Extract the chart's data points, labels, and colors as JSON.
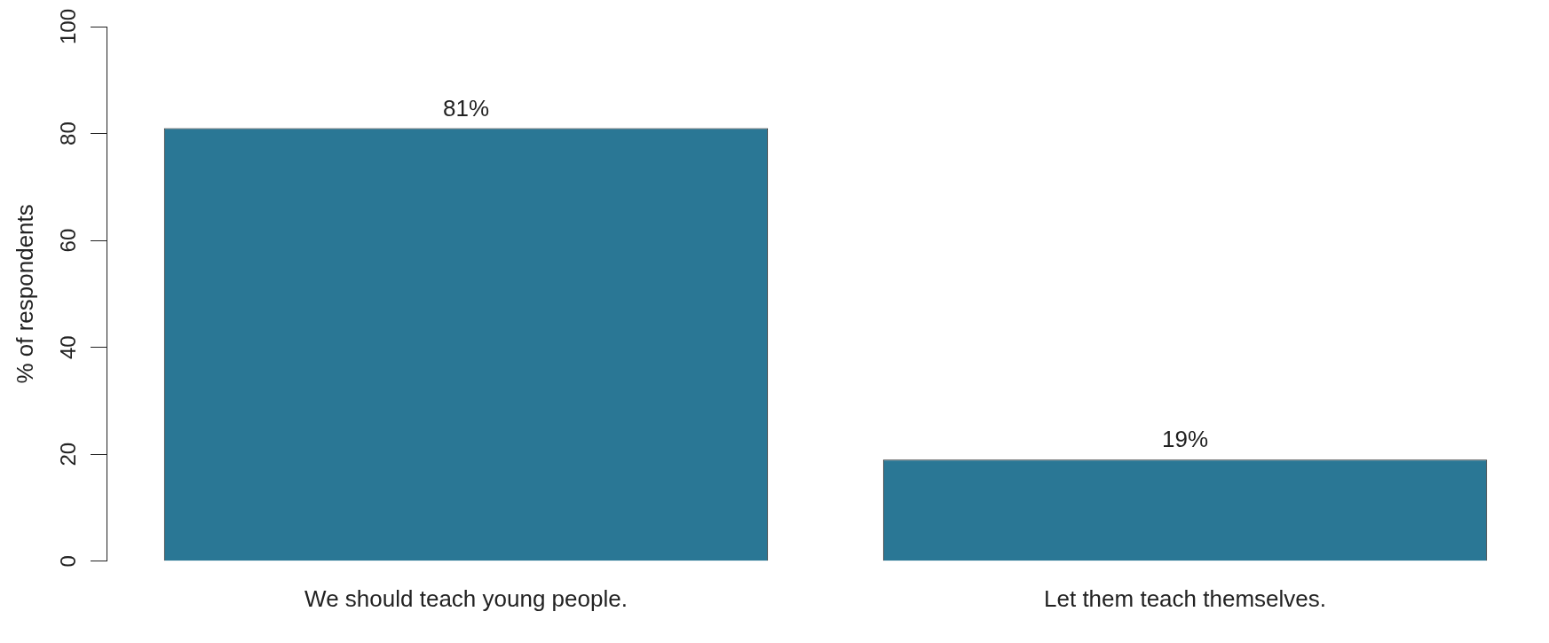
{
  "chart_data": {
    "type": "bar",
    "ylabel": "% of respondents",
    "categories": [
      "We should teach young people.",
      "Let them teach themselves."
    ],
    "values": [
      81,
      19
    ],
    "value_labels": [
      "81%",
      "19%"
    ],
    "color": "#2a7795",
    "ylim": [
      0,
      100
    ],
    "yticks": [
      0,
      20,
      40,
      60,
      80,
      100
    ],
    "grid": false,
    "legend": false
  }
}
